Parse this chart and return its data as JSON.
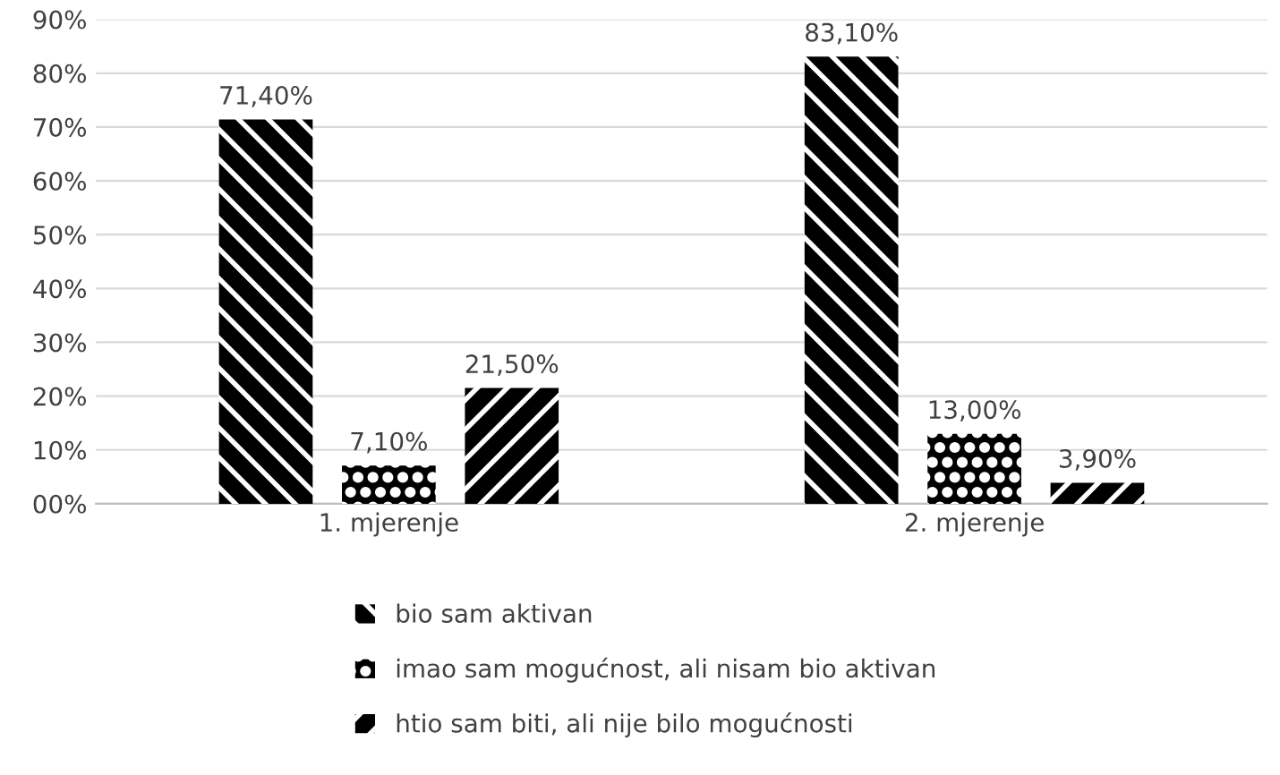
{
  "chart_data": {
    "type": "bar",
    "categories": [
      "1. mjerenje",
      "2. mjerenje"
    ],
    "series": [
      {
        "name": "bio sam aktivan",
        "color": "#000000",
        "values": [
          71.4,
          83.1
        ],
        "value_labels": [
          "71,40%",
          "83,10%"
        ]
      },
      {
        "name": "imao sam mogućnost, ali nisam bio aktivan",
        "color": "#000000",
        "values": [
          7.1,
          13.0
        ],
        "value_labels": [
          "7,10%",
          "13,00%"
        ]
      },
      {
        "name": "htio sam biti, ali nije bilo mogućnosti",
        "color": "#000000",
        "values": [
          21.5,
          3.9
        ],
        "value_labels": [
          "21,50%",
          "3,90%"
        ]
      }
    ],
    "ylim": [
      0,
      90
    ],
    "yticks": [
      {
        "value": 0,
        "label": "00%"
      },
      {
        "value": 10,
        "label": "10%"
      },
      {
        "value": 20,
        "label": "20%"
      },
      {
        "value": 30,
        "label": "30%"
      },
      {
        "value": 40,
        "label": "40%"
      },
      {
        "value": 50,
        "label": "50%"
      },
      {
        "value": 60,
        "label": "60%"
      },
      {
        "value": 70,
        "label": "70%"
      },
      {
        "value": 80,
        "label": "80%"
      },
      {
        "value": 90,
        "label": "90%"
      }
    ],
    "grid": "y",
    "legend": "bottom"
  }
}
